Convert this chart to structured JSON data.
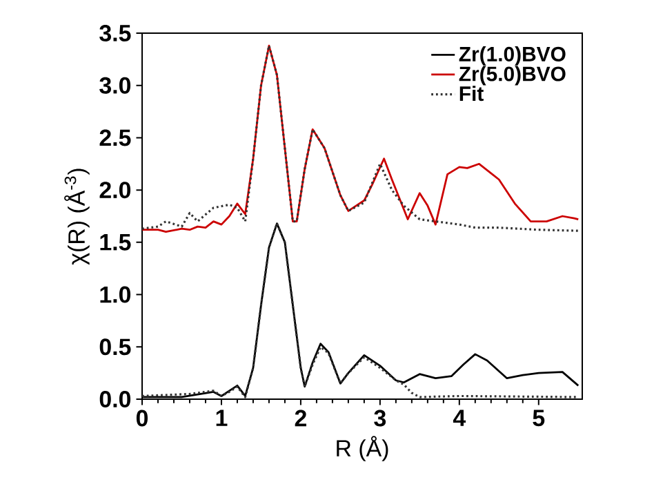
{
  "chart_data": {
    "type": "line",
    "xlabel": "R (Å)",
    "ylabel": "χ(R) (Å$^{-3}$)",
    "xlim": [
      0,
      5.55
    ],
    "ylim": [
      0,
      3.5
    ],
    "xticks": [
      0,
      1,
      2,
      3,
      4,
      5
    ],
    "yticks": [
      {
        "value": 0,
        "label": "0.0"
      },
      {
        "value": 0.5,
        "label": "0.5"
      },
      {
        "value": 1,
        "label": "1.0"
      },
      {
        "value": 1.5,
        "label": "1.5"
      },
      {
        "value": 2,
        "label": "2.0"
      },
      {
        "value": 2.5,
        "label": "2.5"
      },
      {
        "value": 3,
        "label": "3.0"
      },
      {
        "value": 3.5,
        "label": "3.5"
      }
    ],
    "legend": "top right",
    "grid": false,
    "series": [
      {
        "name": "Zr(1.0)BVO",
        "color": "#000000",
        "line_style": "solid",
        "x": [
          0,
          0.5,
          0.9,
          1.0,
          1.1,
          1.2,
          1.3,
          1.4,
          1.5,
          1.6,
          1.7,
          1.8,
          1.9,
          2.0,
          2.05,
          2.15,
          2.25,
          2.35,
          2.5,
          2.6,
          2.8,
          3.0,
          3.2,
          3.3,
          3.5,
          3.7,
          3.9,
          4.05,
          4.2,
          4.35,
          4.6,
          4.8,
          5.0,
          5.3,
          5.5
        ],
        "values": [
          0.02,
          0.02,
          0.07,
          0.03,
          0.08,
          0.13,
          0.03,
          0.3,
          0.9,
          1.45,
          1.68,
          1.5,
          0.9,
          0.3,
          0.12,
          0.35,
          0.53,
          0.45,
          0.15,
          0.25,
          0.42,
          0.32,
          0.18,
          0.16,
          0.24,
          0.2,
          0.22,
          0.33,
          0.43,
          0.37,
          0.2,
          0.23,
          0.25,
          0.26,
          0.13
        ]
      },
      {
        "name": "Zr(5.0)BVO",
        "color": "#cc0000",
        "line_style": "solid",
        "x": [
          0,
          0.2,
          0.3,
          0.5,
          0.6,
          0.7,
          0.8,
          0.9,
          1.0,
          1.1,
          1.2,
          1.3,
          1.4,
          1.5,
          1.6,
          1.7,
          1.8,
          1.9,
          1.95,
          2.05,
          2.15,
          2.3,
          2.5,
          2.6,
          2.8,
          2.9,
          3.05,
          3.15,
          3.35,
          3.5,
          3.6,
          3.7,
          3.85,
          4.0,
          4.1,
          4.25,
          4.5,
          4.7,
          4.9,
          5.1,
          5.3,
          5.45,
          5.5
        ],
        "values": [
          1.62,
          1.62,
          1.6,
          1.63,
          1.62,
          1.65,
          1.64,
          1.7,
          1.67,
          1.75,
          1.87,
          1.77,
          2.3,
          3.0,
          3.38,
          3.1,
          2.4,
          1.7,
          1.7,
          2.2,
          2.58,
          2.4,
          1.95,
          1.8,
          1.9,
          2.05,
          2.3,
          2.1,
          1.72,
          1.97,
          1.85,
          1.67,
          2.15,
          2.22,
          2.21,
          2.25,
          2.1,
          1.87,
          1.7,
          1.7,
          1.75,
          1.73,
          1.72
        ]
      },
      {
        "name": "Fit",
        "color": "#333333",
        "line_style": "dotted",
        "x": [
          0,
          0.6,
          0.9,
          1.0,
          1.1,
          1.2,
          1.3,
          1.4,
          1.5,
          1.6,
          1.7,
          1.8,
          1.9,
          2.0,
          2.05,
          2.15,
          2.25,
          2.35,
          2.5,
          2.6,
          2.8,
          3.0,
          3.2,
          3.3,
          3.4,
          3.5,
          4.0,
          5.5
        ],
        "values": [
          0.03,
          0.05,
          0.08,
          0.03,
          0.07,
          0.12,
          0.02,
          0.3,
          0.9,
          1.45,
          1.68,
          1.5,
          0.9,
          0.3,
          0.12,
          0.33,
          0.5,
          0.44,
          0.15,
          0.25,
          0.4,
          0.3,
          0.18,
          0.14,
          0.06,
          0.02,
          0.03,
          0.02
        ]
      },
      {
        "color": "#333333",
        "line_style": "dotted",
        "x": [
          0,
          0.2,
          0.3,
          0.5,
          0.6,
          0.7,
          0.9,
          1.1,
          1.2,
          1.3,
          1.4,
          1.5,
          1.6,
          1.7,
          1.8,
          1.9,
          1.95,
          2.05,
          2.15,
          2.3,
          2.5,
          2.6,
          2.8,
          3.0,
          3.15,
          3.3,
          3.5,
          3.7,
          4.0,
          4.2,
          4.5,
          5.0,
          5.5
        ],
        "values": [
          1.63,
          1.65,
          1.7,
          1.65,
          1.78,
          1.7,
          1.83,
          1.86,
          1.83,
          1.7,
          2.3,
          3.0,
          3.38,
          3.1,
          2.4,
          1.7,
          1.7,
          2.2,
          2.58,
          2.4,
          1.95,
          1.8,
          1.88,
          2.25,
          2.0,
          1.85,
          1.72,
          1.7,
          1.67,
          1.64,
          1.64,
          1.62,
          1.61
        ]
      }
    ]
  }
}
